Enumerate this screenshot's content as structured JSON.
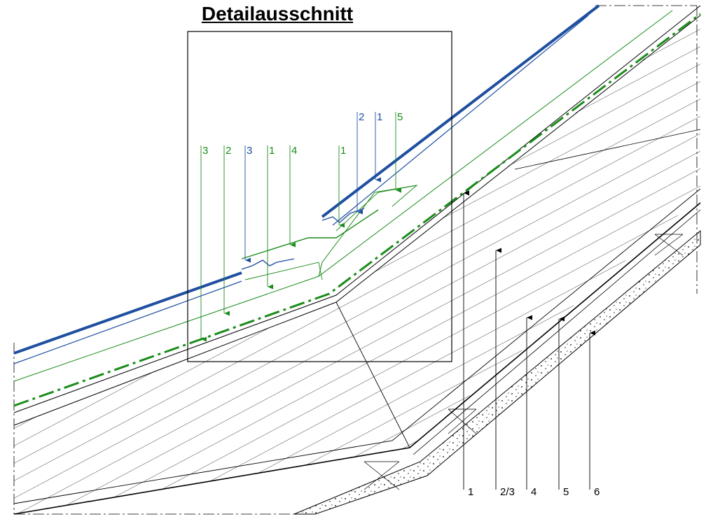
{
  "title": "Detailausschnitt",
  "colors": {
    "green": "#1a8c1a",
    "blue": "#1f4fa0",
    "black": "#000000"
  },
  "callouts_green": [
    "3",
    "2",
    "1",
    "4",
    "1",
    "5"
  ],
  "callouts_blue": [
    "3",
    "2",
    "1"
  ],
  "bottom_callouts": [
    "1",
    "2/3",
    "4",
    "5",
    "6"
  ]
}
